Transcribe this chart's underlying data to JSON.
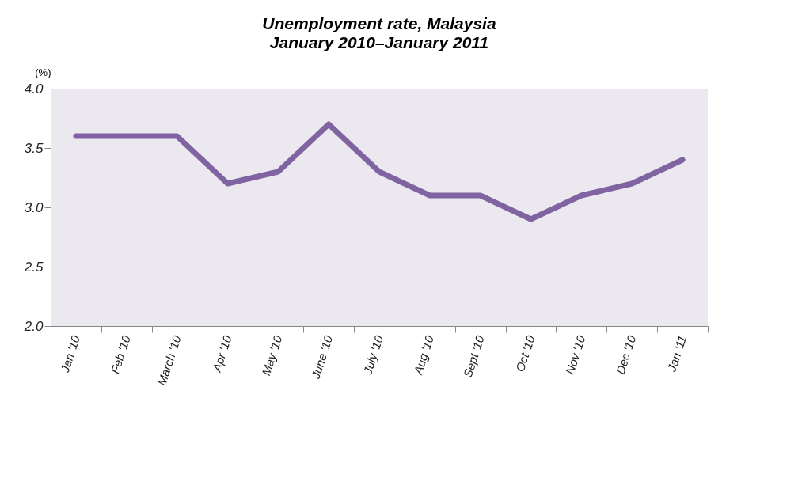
{
  "chart_data": {
    "type": "line",
    "title": "Unemployment rate, Malaysia",
    "subtitle": "January 2010–January 2011",
    "ylabel": "(%)",
    "categories": [
      "Jan '10",
      "Feb '10",
      "March '10",
      "Apr '10",
      "May '10",
      "June '10",
      "July '10",
      "Aug '10",
      "Sept '10",
      "Oct '10",
      "Nov '10",
      "Dec '10",
      "Jan '11"
    ],
    "series": [
      {
        "color": "#8064a2",
        "values": [
          3.6,
          3.6,
          3.6,
          3.2,
          3.3,
          3.7,
          3.3,
          3.1,
          3.1,
          2.9,
          3.1,
          3.2,
          3.4
        ]
      }
    ],
    "ylim": [
      2.0,
      4.0
    ],
    "yticks": [
      {
        "value": 2.0,
        "label": "2.0"
      },
      {
        "value": 2.5,
        "label": "2.5"
      },
      {
        "value": 3.0,
        "label": "3.0"
      },
      {
        "value": 3.5,
        "label": "3.5"
      },
      {
        "value": 4.0,
        "label": "4.0"
      }
    ],
    "grid": false,
    "legend": false,
    "marker": "none",
    "line_style": "solid"
  }
}
